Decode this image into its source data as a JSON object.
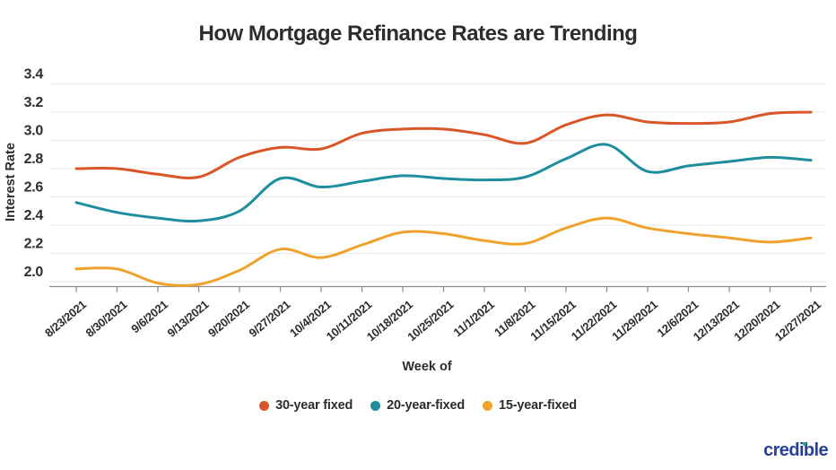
{
  "title": "How Mortgage Refinance Rates are Trending",
  "y_axis": {
    "title": "Interest Rate",
    "tick_labels": [
      "3.4",
      "3.2",
      "3.0",
      "2.8",
      "2.6",
      "2.4",
      "2.2",
      "2.0"
    ]
  },
  "x_axis": {
    "title": "Week of"
  },
  "legend": {
    "items": [
      {
        "label": "30-year fixed",
        "color": "#da5527"
      },
      {
        "label": "20-year-fixed",
        "color": "#1d8e9e"
      },
      {
        "label": "15-year-fixed",
        "color": "#efa32d"
      }
    ]
  },
  "logo_text": "credible",
  "colors": {
    "grid": "#e8e8e8",
    "axis": "#8c8c8c",
    "text": "#2d2d2d",
    "logo": "#27409b"
  },
  "chart_data": {
    "type": "line",
    "title": "How Mortgage Refinance Rates are Trending",
    "xlabel": "Week of",
    "ylabel": "Interest Rate",
    "x": [
      "8/23/2021",
      "8/30/2021",
      "9/6/2021",
      "9/13/2021",
      "9/20/2021",
      "9/27/2021",
      "10/4/2021",
      "10/11/2021",
      "10/18/2021",
      "10/25/2021",
      "11/1/2021",
      "11/8/2021",
      "11/15/2021",
      "11/22/2021",
      "11/29/2021",
      "12/6/2021",
      "12/13/2021",
      "12/20/2021",
      "12/27/2021"
    ],
    "series": [
      {
        "name": "30-year fixed",
        "color": "#da5527",
        "values": [
          2.8,
          2.8,
          2.76,
          2.74,
          2.88,
          2.95,
          2.94,
          3.05,
          3.08,
          3.08,
          3.04,
          2.98,
          3.11,
          3.18,
          3.13,
          3.12,
          3.13,
          3.19,
          3.2
        ]
      },
      {
        "name": "20-year-fixed",
        "color": "#1d8e9e",
        "values": [
          2.56,
          2.49,
          2.45,
          2.43,
          2.5,
          2.73,
          2.67,
          2.71,
          2.75,
          2.73,
          2.72,
          2.74,
          2.87,
          2.97,
          2.78,
          2.82,
          2.85,
          2.88,
          2.86
        ]
      },
      {
        "name": "15-year-fixed",
        "color": "#efa32d",
        "values": [
          2.09,
          2.09,
          1.99,
          1.98,
          2.08,
          2.23,
          2.17,
          2.26,
          2.35,
          2.34,
          2.29,
          2.27,
          2.38,
          2.45,
          2.38,
          2.34,
          2.31,
          2.28,
          2.31
        ]
      }
    ],
    "y_ticks": [
      3.4,
      3.2,
      3.0,
      2.8,
      2.6,
      2.4,
      2.2,
      2.0
    ],
    "ylim": [
      1.95,
      3.45
    ],
    "grid": true,
    "legend_position": "bottom"
  }
}
